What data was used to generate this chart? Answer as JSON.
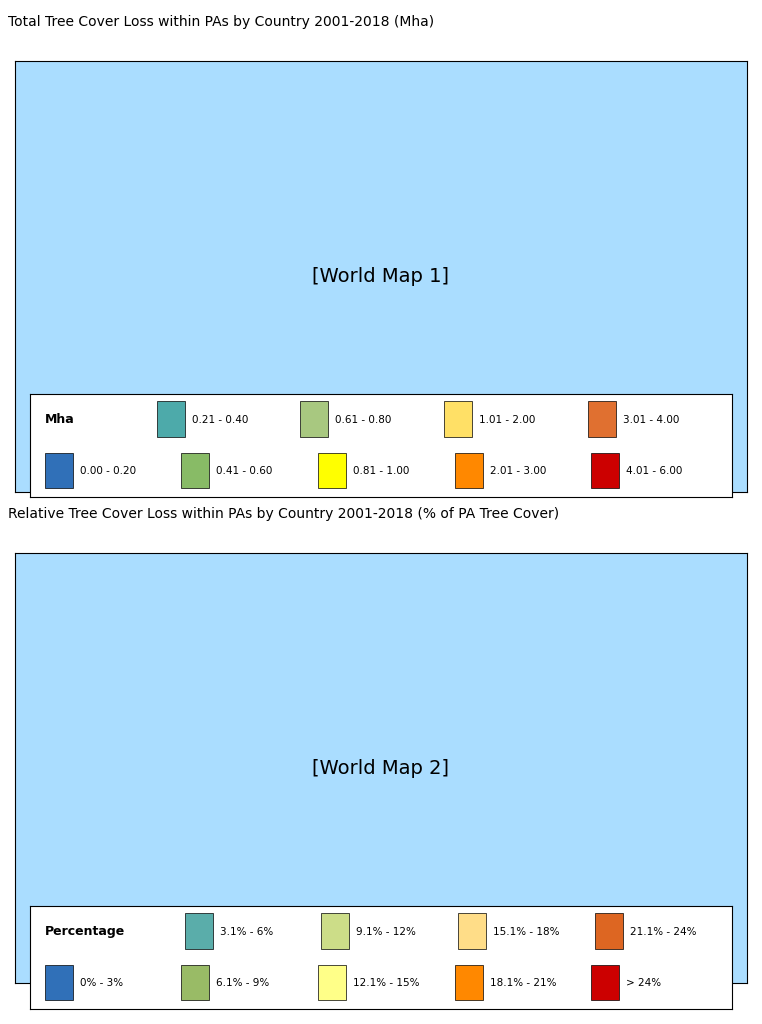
{
  "title1": "Total Tree Cover Loss within PAs by Country 2001-2018 (Mha)",
  "title2": "Relative Tree Cover Loss within PAs by Country 2001-2018 (% of PA Tree Cover)",
  "legend1": {
    "header": "Mha",
    "items_row1": [
      {
        "color": "#4DAAAA",
        "label": "0.21 - 0.40"
      },
      {
        "color": "#A8C880",
        "label": "0.61 - 0.80"
      },
      {
        "color": "#FFE066",
        "label": "1.01 - 2.00"
      },
      {
        "color": "#E07030",
        "label": "3.01 - 4.00"
      }
    ],
    "items_row2": [
      {
        "color": "#3070B8",
        "label": "0.00 - 0.20"
      },
      {
        "color": "#88BB66",
        "label": "0.41 - 0.60"
      },
      {
        "color": "#FFFF00",
        "label": "0.81 - 1.00"
      },
      {
        "color": "#FF8800",
        "label": "2.01 - 3.00"
      },
      {
        "color": "#CC0000",
        "label": "4.01 - 6.00"
      }
    ]
  },
  "legend2": {
    "header": "Percentage",
    "items_row1": [
      {
        "color": "#5AADAA",
        "label": "3.1% - 6%"
      },
      {
        "color": "#CCDD88",
        "label": "9.1% - 12%"
      },
      {
        "color": "#FFDD88",
        "label": "15.1% - 18%"
      },
      {
        "color": "#DD6622",
        "label": "21.1% - 24%"
      }
    ],
    "items_row2": [
      {
        "color": "#3070B8",
        "label": "0% - 3%"
      },
      {
        "color": "#99BB66",
        "label": "6.1% - 9%"
      },
      {
        "color": "#FFFF88",
        "label": "12.1% - 15%"
      },
      {
        "color": "#FF8800",
        "label": "18.1% - 21%"
      },
      {
        "color": "#CC0000",
        "label": "> 24%"
      }
    ]
  },
  "background_color": "#FFFFFF",
  "title_fontsize": 10,
  "legend_fontsize": 9,
  "box_border_color": "#000000"
}
